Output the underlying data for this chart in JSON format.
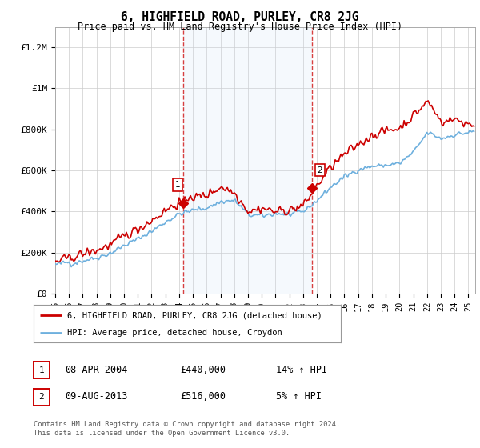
{
  "title": "6, HIGHFIELD ROAD, PURLEY, CR8 2JG",
  "subtitle": "Price paid vs. HM Land Registry's House Price Index (HPI)",
  "ylabel_ticks": [
    "£0",
    "£200K",
    "£400K",
    "£600K",
    "£800K",
    "£1M",
    "£1.2M"
  ],
  "ytick_values": [
    0,
    200000,
    400000,
    600000,
    800000,
    1000000,
    1200000
  ],
  "ylim": [
    0,
    1300000
  ],
  "xlim_start": 1995.0,
  "xlim_end": 2025.5,
  "xtick_years": [
    1995,
    1996,
    1997,
    1998,
    1999,
    2000,
    2001,
    2002,
    2003,
    2004,
    2005,
    2006,
    2007,
    2008,
    2009,
    2010,
    2011,
    2012,
    2013,
    2014,
    2015,
    2016,
    2017,
    2018,
    2019,
    2020,
    2021,
    2022,
    2023,
    2024,
    2025
  ],
  "xtick_labels": [
    "95",
    "96",
    "97",
    "98",
    "99",
    "00",
    "01",
    "02",
    "03",
    "04",
    "05",
    "06",
    "07",
    "08",
    "09",
    "10",
    "11",
    "12",
    "13",
    "14",
    "15",
    "16",
    "17",
    "18",
    "19",
    "20",
    "21",
    "22",
    "23",
    "24",
    "25"
  ],
  "hpi_color": "#6eb0de",
  "price_color": "#cc0000",
  "sale1_x": 2004.27,
  "sale1_y": 440000,
  "sale2_x": 2013.62,
  "sale2_y": 516000,
  "vline_color": "#cc0000",
  "legend_label1": "6, HIGHFIELD ROAD, PURLEY, CR8 2JG (detached house)",
  "legend_label2": "HPI: Average price, detached house, Croydon",
  "table_row1": [
    "1",
    "08-APR-2004",
    "£440,000",
    "14% ↑ HPI"
  ],
  "table_row2": [
    "2",
    "09-AUG-2013",
    "£516,000",
    "5% ↑ HPI"
  ],
  "footnote": "Contains HM Land Registry data © Crown copyright and database right 2024.\nThis data is licensed under the Open Government Licence v3.0.",
  "bg_color": "#ffffff",
  "plot_bg_color": "#ffffff",
  "grid_color": "#cccccc",
  "shade_color": "#cce0f5"
}
